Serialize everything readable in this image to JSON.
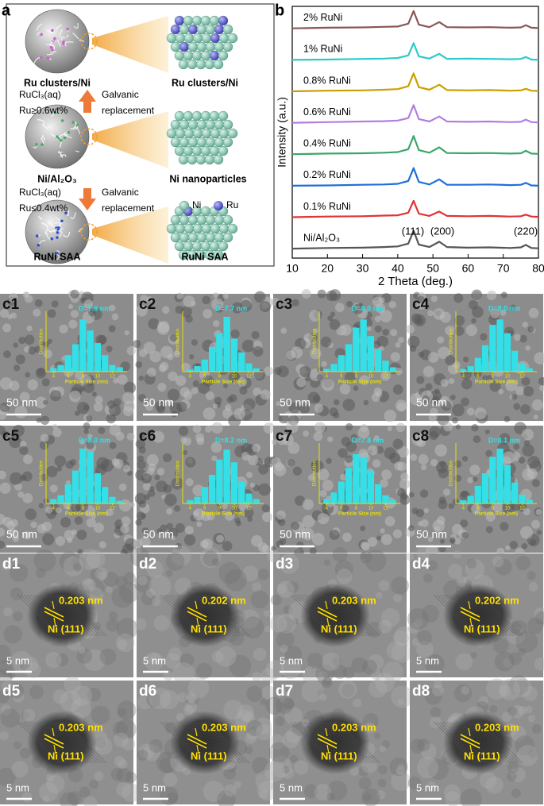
{
  "panel_a": {
    "label": "a",
    "top": [
      "Ru clusters/Ni",
      "Ru clusters/Ni"
    ],
    "step1": {
      "reagent": [
        "RuCl₃(aq)",
        "Ru≥0.6wt%"
      ],
      "process": [
        "Galvanic",
        "replacement"
      ]
    },
    "middle": [
      "Ni/Al₂O₃",
      "Ni nanoparticles"
    ],
    "step2": {
      "reagent": [
        "RuCl₃(aq)",
        "Ru≤0.4wt%"
      ],
      "process": [
        "Galvanic",
        "replacement"
      ]
    },
    "legend": [
      "Ni",
      "Ru"
    ],
    "bottom": [
      "RuNi SAA",
      "RuNi SAA"
    ]
  },
  "panel_b_label": "b",
  "chart_data": {
    "type": "line",
    "x_label": "2 Theta (deg.)",
    "y_label": "Intensity (a.u.)",
    "x": [
      10,
      20,
      30,
      36,
      40,
      43,
      44.5,
      46,
      49,
      51.8,
      54,
      60,
      66,
      72,
      75,
      76.4,
      78,
      80
    ],
    "xlim": [
      10,
      80
    ],
    "xticks": [
      10,
      20,
      30,
      40,
      50,
      60,
      70,
      80
    ],
    "ylim": [
      0,
      8
    ],
    "series": [
      {
        "name": "2% RuNi",
        "color": "#8a5656",
        "values": [
          7.3,
          7.32,
          7.33,
          7.35,
          7.36,
          7.45,
          7.85,
          7.42,
          7.34,
          7.5,
          7.34,
          7.33,
          7.34,
          7.32,
          7.33,
          7.4,
          7.32,
          7.31
        ]
      },
      {
        "name": "1% RuNi",
        "color": "#2fc9c9",
        "values": [
          6.3,
          6.31,
          6.33,
          6.34,
          6.36,
          6.44,
          6.83,
          6.41,
          6.34,
          6.49,
          6.33,
          6.34,
          6.33,
          6.32,
          6.33,
          6.39,
          6.31,
          6.3
        ]
      },
      {
        "name": "0.8% RuNi",
        "color": "#c9a000",
        "values": [
          5.3,
          5.32,
          5.33,
          5.35,
          5.37,
          5.46,
          5.87,
          5.43,
          5.35,
          5.51,
          5.34,
          5.33,
          5.34,
          5.32,
          5.33,
          5.38,
          5.32,
          5.31
        ]
      },
      {
        "name": "0.6% RuNi",
        "color": "#b27ee0",
        "values": [
          4.3,
          4.32,
          4.34,
          4.35,
          4.37,
          4.45,
          4.86,
          4.42,
          4.34,
          4.5,
          4.34,
          4.33,
          4.34,
          4.32,
          4.33,
          4.4,
          4.32,
          4.31
        ]
      },
      {
        "name": "0.4% RuNi",
        "color": "#3aa66a",
        "values": [
          3.3,
          3.32,
          3.33,
          3.35,
          3.37,
          3.46,
          3.88,
          3.43,
          3.35,
          3.52,
          3.34,
          3.33,
          3.34,
          3.32,
          3.33,
          3.41,
          3.32,
          3.31
        ]
      },
      {
        "name": "0.2% RuNi",
        "color": "#1f6fd8",
        "values": [
          2.3,
          2.31,
          2.33,
          2.34,
          2.36,
          2.45,
          2.86,
          2.42,
          2.34,
          2.5,
          2.33,
          2.33,
          2.34,
          2.32,
          2.33,
          2.39,
          2.31,
          2.3
        ]
      },
      {
        "name": "0.1% RuNi",
        "color": "#e03333",
        "values": [
          1.3,
          1.32,
          1.33,
          1.35,
          1.36,
          1.44,
          1.82,
          1.41,
          1.34,
          1.48,
          1.34,
          1.33,
          1.34,
          1.32,
          1.33,
          1.38,
          1.32,
          1.31
        ]
      },
      {
        "name": "Ni/Al₂O₃",
        "color": "#555555",
        "values": [
          0.3,
          0.32,
          0.33,
          0.35,
          0.37,
          0.46,
          0.87,
          0.43,
          0.35,
          0.52,
          0.35,
          0.33,
          0.34,
          0.32,
          0.34,
          0.42,
          0.32,
          0.31
        ]
      }
    ],
    "annotations": [
      "(111)",
      "(200)",
      "(220)"
    ]
  },
  "histogram": {
    "x_label": "Particle Size (nm)",
    "y_label": "Distribution",
    "bins": [
      3.5,
      4.5,
      5.5,
      6.5,
      7.5,
      8.5,
      9.5,
      10.5,
      11.5,
      12.5,
      13.5
    ],
    "xlim": [
      3,
      14
    ],
    "xticks": [
      4,
      6,
      8,
      10,
      12
    ],
    "ylim": [
      0,
      110
    ]
  },
  "panels_c": [
    {
      "label": "c1",
      "mean": "D=7.6 nm",
      "scale": "50 nm",
      "counts": [
        6,
        12,
        30,
        50,
        95,
        75,
        52,
        30,
        12,
        8
      ]
    },
    {
      "label": "c2",
      "mean": "D=7.7 nm",
      "scale": "50 nm",
      "counts": [
        4,
        10,
        22,
        45,
        70,
        100,
        60,
        35,
        15,
        6
      ]
    },
    {
      "label": "c3",
      "mean": "D=8.0 nm",
      "scale": "50 nm",
      "counts": [
        5,
        14,
        30,
        50,
        80,
        95,
        65,
        40,
        20,
        8
      ]
    },
    {
      "label": "c4",
      "mean": "D=8.0 nm",
      "scale": "50 nm",
      "counts": [
        5,
        10,
        25,
        48,
        85,
        95,
        70,
        38,
        15,
        6
      ]
    },
    {
      "label": "c5",
      "mean": "D=8.0 nm",
      "scale": "50 nm",
      "counts": [
        8,
        15,
        35,
        60,
        100,
        95,
        55,
        30,
        12,
        5
      ]
    },
    {
      "label": "c6",
      "mean": "D=8.2 nm",
      "scale": "50 nm",
      "counts": [
        6,
        12,
        30,
        52,
        80,
        98,
        75,
        40,
        18,
        8
      ]
    },
    {
      "label": "c7",
      "mean": "D=7.8 nm",
      "scale": "50 nm",
      "counts": [
        8,
        20,
        40,
        65,
        90,
        85,
        60,
        35,
        15,
        6
      ]
    },
    {
      "label": "c8",
      "mean": "D=8.1 nm",
      "scale": "50 nm",
      "counts": [
        6,
        14,
        32,
        55,
        85,
        100,
        70,
        38,
        16,
        7
      ]
    }
  ],
  "panels_d": [
    {
      "label": "d1",
      "spacing": "0.203 nm",
      "plane": "Ni (111)",
      "scale": "5 nm"
    },
    {
      "label": "d2",
      "spacing": "0.202 nm",
      "plane": "Ni (111)",
      "scale": "5 nm"
    },
    {
      "label": "d3",
      "spacing": "0.203 nm",
      "plane": "Ni (111)",
      "scale": "5 nm"
    },
    {
      "label": "d4",
      "spacing": "0.202 nm",
      "plane": "Ni (111)",
      "scale": "5 nm"
    },
    {
      "label": "d5",
      "spacing": "0.203 nm",
      "plane": "Ni (111)",
      "scale": "5 nm"
    },
    {
      "label": "d6",
      "spacing": "0.203 nm",
      "plane": "Ni (111)",
      "scale": "5 nm"
    },
    {
      "label": "d7",
      "spacing": "0.203 nm",
      "plane": "Ni (111)",
      "scale": "5 nm"
    },
    {
      "label": "d8",
      "spacing": "0.203 nm",
      "plane": "Ni (111)",
      "scale": "5 nm"
    }
  ]
}
